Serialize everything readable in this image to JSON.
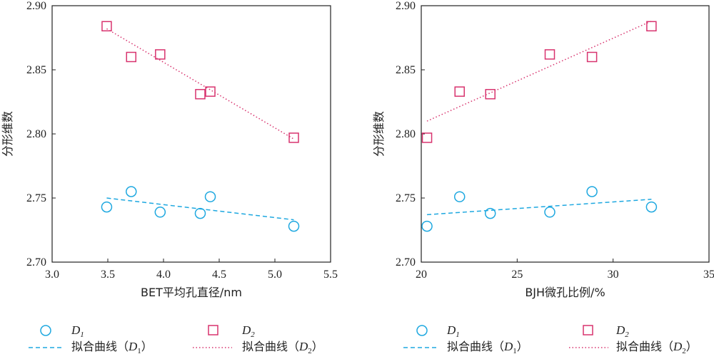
{
  "colors": {
    "d1": "#1ea8e0",
    "d2": "#d8336e",
    "axis": "#222222"
  },
  "chart_data": [
    {
      "type": "scatter",
      "xlabel": "BET平均孔直径/nm",
      "ylabel": "分形维数",
      "xlim": [
        3.0,
        5.5
      ],
      "ylim": [
        2.7,
        2.9
      ],
      "xticks": [
        "3.0",
        "3.5",
        "4.0",
        "4.5",
        "5.0",
        "5.5"
      ],
      "yticks": [
        "2.70",
        "2.75",
        "2.80",
        "2.85",
        "2.90"
      ],
      "series": [
        {
          "name": "D1",
          "marker": "circle",
          "points": [
            [
              3.49,
              2.743
            ],
            [
              3.71,
              2.755
            ],
            [
              3.97,
              2.739
            ],
            [
              4.33,
              2.738
            ],
            [
              4.42,
              2.751
            ],
            [
              5.17,
              2.728
            ]
          ]
        },
        {
          "name": "D2",
          "marker": "square",
          "points": [
            [
              3.49,
              2.884
            ],
            [
              3.71,
              2.86
            ],
            [
              3.97,
              2.862
            ],
            [
              4.33,
              2.831
            ],
            [
              4.42,
              2.833
            ],
            [
              5.17,
              2.797
            ]
          ]
        }
      ],
      "fits": [
        {
          "series": "D1",
          "style": "dashed",
          "from": [
            3.49,
            2.75
          ],
          "to": [
            5.17,
            2.733
          ]
        },
        {
          "series": "D2",
          "style": "dotted",
          "from": [
            3.49,
            2.882
          ],
          "to": [
            5.17,
            2.796
          ]
        }
      ]
    },
    {
      "type": "scatter",
      "xlabel": "BJH微孔比例/%",
      "ylabel": "分形维数",
      "xlim": [
        20,
        35
      ],
      "ylim": [
        2.7,
        2.9
      ],
      "xticks": [
        "20",
        "25",
        "30",
        "35"
      ],
      "yticks": [
        "2.70",
        "2.75",
        "2.80",
        "2.85",
        "2.90"
      ],
      "series": [
        {
          "name": "D1",
          "marker": "circle",
          "points": [
            [
              20.3,
              2.728
            ],
            [
              22.0,
              2.751
            ],
            [
              23.6,
              2.738
            ],
            [
              26.7,
              2.739
            ],
            [
              28.9,
              2.755
            ],
            [
              32.0,
              2.743
            ]
          ]
        },
        {
          "name": "D2",
          "marker": "square",
          "points": [
            [
              20.3,
              2.797
            ],
            [
              22.0,
              2.833
            ],
            [
              23.6,
              2.831
            ],
            [
              26.7,
              2.862
            ],
            [
              28.9,
              2.86
            ],
            [
              32.0,
              2.884
            ]
          ]
        }
      ],
      "fits": [
        {
          "series": "D1",
          "style": "dashed",
          "from": [
            20.3,
            2.737
          ],
          "to": [
            32.0,
            2.749
          ]
        },
        {
          "series": "D2",
          "style": "dotted",
          "from": [
            20.3,
            2.81
          ],
          "to": [
            32.0,
            2.888
          ]
        }
      ]
    }
  ],
  "legends": [
    {
      "d1_symbol": "D",
      "d1_sub": "1",
      "d2_symbol": "D",
      "d2_sub": "2",
      "fit_prefix": "拟合曲线（",
      "fit_suffix": "）"
    },
    {
      "d1_symbol": "D",
      "d1_sub": "1",
      "d2_symbol": "D",
      "d2_sub": "2",
      "fit_prefix": "拟合曲线（",
      "fit_suffix": "）"
    }
  ]
}
